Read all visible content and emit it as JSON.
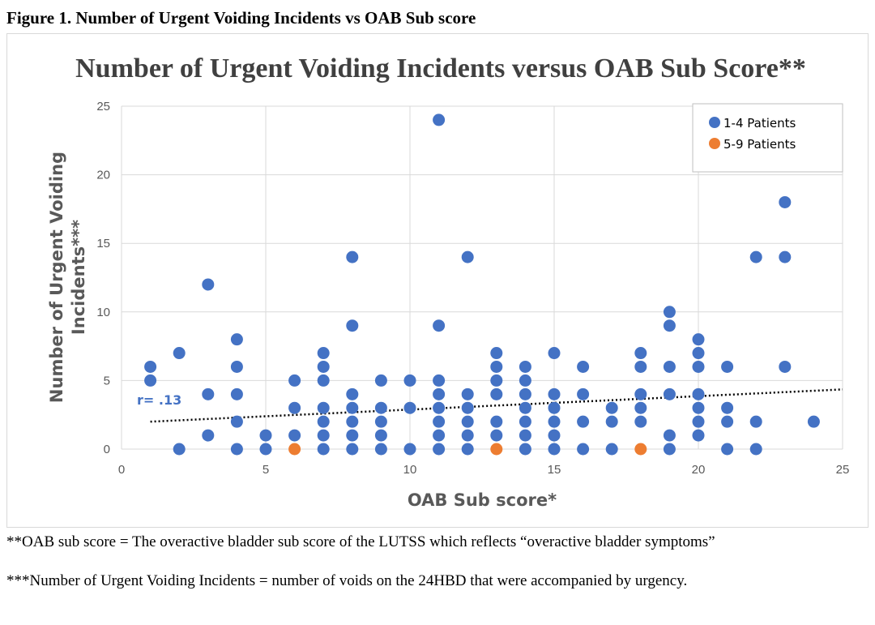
{
  "figure_caption": "Figure 1. Number of Urgent Voiding Incidents vs OAB Sub score",
  "footnotes": [
    "**OAB sub score = The overactive bladder sub score of the LUTSS which reflects “overactive bladder symptoms”",
    "***Number of Urgent Voiding Incidents = number of voids on the 24HBD that were accompanied by urgency."
  ],
  "chart_data": {
    "type": "scatter",
    "title": "Number of Urgent Voiding Incidents versus OAB Sub Score**",
    "xlabel": "OAB Sub score*",
    "ylabel": "Number of Urgent Voiding Incidents***",
    "xlim": [
      0,
      25
    ],
    "ylim": [
      0,
      25
    ],
    "xticks": [
      "0",
      "5",
      "10",
      "15",
      "20",
      "25"
    ],
    "yticks": [
      "0",
      "5",
      "10",
      "15",
      "20",
      "25"
    ],
    "grid": true,
    "legend_position": "top-right",
    "annotation": "r= .13",
    "trendline": {
      "style": "dotted",
      "x": [
        1,
        25
      ],
      "y": [
        2.0,
        4.35
      ]
    },
    "colors": {
      "series1": "#4472c4",
      "series2": "#ed7d31",
      "trend": "#000000",
      "annotation": "#4472c4"
    },
    "series": [
      {
        "name": "1-4 Patients",
        "points": [
          [
            1,
            5
          ],
          [
            1,
            6
          ],
          [
            2,
            0
          ],
          [
            2,
            7
          ],
          [
            3,
            1
          ],
          [
            3,
            4
          ],
          [
            3,
            12
          ],
          [
            4,
            0
          ],
          [
            4,
            2
          ],
          [
            4,
            4
          ],
          [
            4,
            6
          ],
          [
            4,
            8
          ],
          [
            5,
            0
          ],
          [
            5,
            1
          ],
          [
            6,
            1
          ],
          [
            6,
            3
          ],
          [
            6,
            5
          ],
          [
            7,
            0
          ],
          [
            7,
            1
          ],
          [
            7,
            2
          ],
          [
            7,
            3
          ],
          [
            7,
            5
          ],
          [
            7,
            6
          ],
          [
            7,
            7
          ],
          [
            8,
            0
          ],
          [
            8,
            1
          ],
          [
            8,
            2
          ],
          [
            8,
            3
          ],
          [
            8,
            4
          ],
          [
            8,
            9
          ],
          [
            8,
            14
          ],
          [
            9,
            0
          ],
          [
            9,
            1
          ],
          [
            9,
            2
          ],
          [
            9,
            3
          ],
          [
            9,
            5
          ],
          [
            10,
            0
          ],
          [
            10,
            3
          ],
          [
            10,
            5
          ],
          [
            11,
            0
          ],
          [
            11,
            1
          ],
          [
            11,
            2
          ],
          [
            11,
            3
          ],
          [
            11,
            4
          ],
          [
            11,
            5
          ],
          [
            11,
            9
          ],
          [
            11,
            24
          ],
          [
            12,
            0
          ],
          [
            12,
            1
          ],
          [
            12,
            2
          ],
          [
            12,
            3
          ],
          [
            12,
            4
          ],
          [
            12,
            14
          ],
          [
            13,
            1
          ],
          [
            13,
            2
          ],
          [
            13,
            4
          ],
          [
            13,
            5
          ],
          [
            13,
            6
          ],
          [
            13,
            7
          ],
          [
            14,
            0
          ],
          [
            14,
            1
          ],
          [
            14,
            2
          ],
          [
            14,
            3
          ],
          [
            14,
            4
          ],
          [
            14,
            5
          ],
          [
            14,
            6
          ],
          [
            15,
            0
          ],
          [
            15,
            1
          ],
          [
            15,
            2
          ],
          [
            15,
            3
          ],
          [
            15,
            4
          ],
          [
            15,
            7
          ],
          [
            16,
            0
          ],
          [
            16,
            2
          ],
          [
            16,
            4
          ],
          [
            16,
            6
          ],
          [
            17,
            0
          ],
          [
            17,
            2
          ],
          [
            17,
            3
          ],
          [
            18,
            2
          ],
          [
            18,
            3
          ],
          [
            18,
            4
          ],
          [
            18,
            6
          ],
          [
            18,
            7
          ],
          [
            19,
            0
          ],
          [
            19,
            1
          ],
          [
            19,
            4
          ],
          [
            19,
            6
          ],
          [
            19,
            9
          ],
          [
            19,
            10
          ],
          [
            20,
            1
          ],
          [
            20,
            2
          ],
          [
            20,
            3
          ],
          [
            20,
            4
          ],
          [
            20,
            6
          ],
          [
            20,
            7
          ],
          [
            20,
            8
          ],
          [
            21,
            0
          ],
          [
            21,
            2
          ],
          [
            21,
            3
          ],
          [
            21,
            6
          ],
          [
            22,
            0
          ],
          [
            22,
            2
          ],
          [
            22,
            14
          ],
          [
            23,
            6
          ],
          [
            23,
            14
          ],
          [
            23,
            18
          ],
          [
            24,
            2
          ]
        ]
      },
      {
        "name": "5-9 Patients",
        "points": [
          [
            6,
            0
          ],
          [
            13,
            0
          ],
          [
            18,
            0
          ]
        ]
      }
    ]
  }
}
